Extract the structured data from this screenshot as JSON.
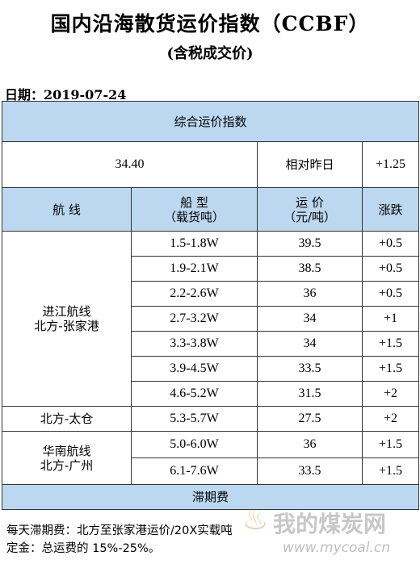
{
  "title": "国内沿海散货运价指数（CCBF）",
  "subtitle": "(含税成交价)",
  "date": "日期：2019-07-24",
  "composite": {
    "heading": "综合运价指数",
    "value": "34.40",
    "compare_label": "相对昨日",
    "change": "+1.25"
  },
  "columns": {
    "route": "航  线",
    "ship_type": "船  型",
    "ship_type_unit": "（载货吨）",
    "freight": "运  价",
    "freight_unit": "（元/吨）",
    "change": "涨跌"
  },
  "groups": [
    {
      "route_line1": "进江航线",
      "route_line2": "北方-张家港",
      "rows": [
        {
          "ship": "1.5-1.8W",
          "price": "39.5",
          "change": "+0.5"
        },
        {
          "ship": "1.9-2.1W",
          "price": "38.5",
          "change": "+0.5"
        },
        {
          "ship": "2.2-2.6W",
          "price": "36",
          "change": "+0.5"
        },
        {
          "ship": "2.7-3.2W",
          "price": "34",
          "change": "+1"
        },
        {
          "ship": "3.3-3.8W",
          "price": "34",
          "change": "+1.5"
        },
        {
          "ship": "3.9-4.5W",
          "price": "33.5",
          "change": "+1.5"
        },
        {
          "ship": "4.6-5.2W",
          "price": "31.5",
          "change": "+2"
        }
      ]
    },
    {
      "route_line1": "北方-太仓",
      "rows": [
        {
          "ship": "5.3-5.7W",
          "price": "27.5",
          "change": "+2"
        }
      ]
    },
    {
      "route_line1": "华南航线",
      "route_line2": "北方-广州",
      "rows": [
        {
          "ship": "5.0-6.0W",
          "price": "36",
          "change": "+1.5"
        },
        {
          "ship": "6.1-7.6W",
          "price": "33.5",
          "change": "+1.5"
        }
      ]
    }
  ],
  "demurrage": {
    "heading": "滞期费",
    "line1": "每天滞期费：北方至张家港运价/20X实载吨",
    "line2": "定金：总运费的 15%-25%。"
  },
  "watermark": {
    "text": "我的煤炭网",
    "url": "www.mycoal.cn"
  }
}
